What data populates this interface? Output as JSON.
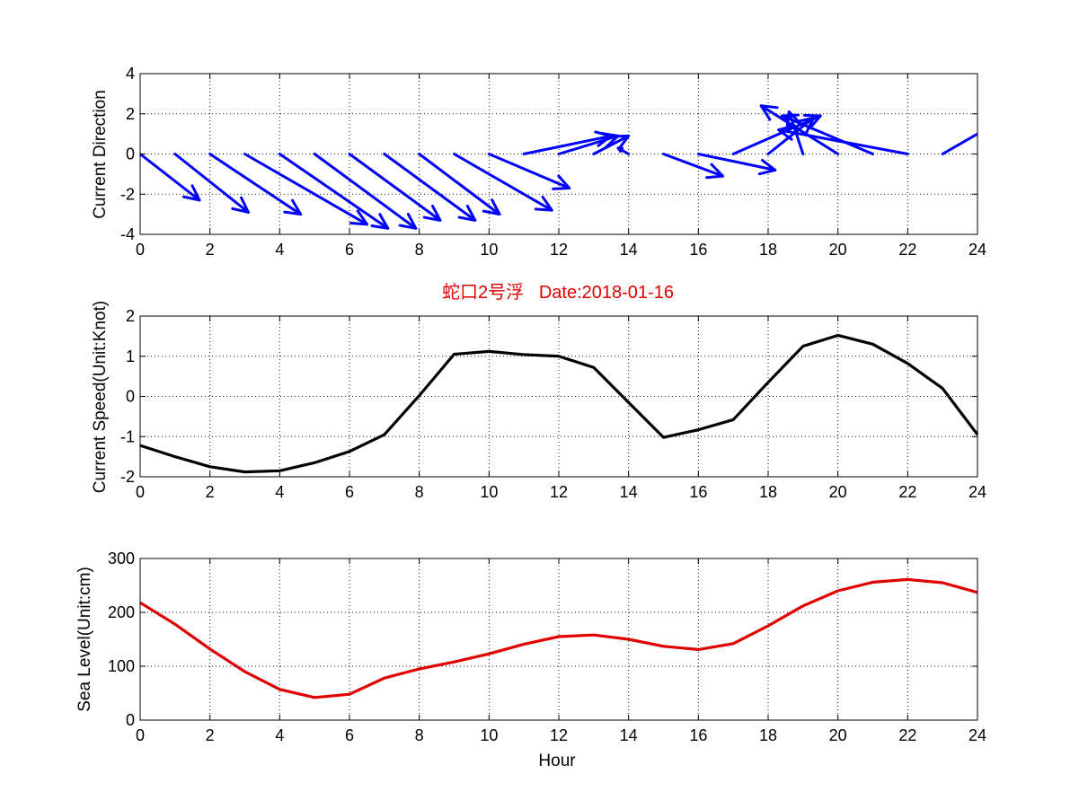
{
  "title": "蛇口2号浮   Date:2018-01-16",
  "colors": {
    "direction": "#0000ff",
    "speed": "#000000",
    "sea_level": "#e00000",
    "title": "#e00000"
  },
  "chart_data": [
    {
      "type": "quiver",
      "ylabel": "Current Direction",
      "xlabel": "",
      "xlim": [
        0,
        24
      ],
      "ylim": [
        -4,
        4
      ],
      "xticks": [
        0,
        2,
        4,
        6,
        8,
        10,
        12,
        14,
        16,
        18,
        20,
        22,
        24
      ],
      "yticks": [
        -4,
        -2,
        0,
        2,
        4
      ],
      "grid": true,
      "x": [
        0,
        1,
        2,
        3,
        4,
        5,
        6,
        7,
        8,
        9,
        10,
        11,
        12,
        13,
        14,
        15,
        16,
        17,
        18,
        19,
        20,
        21,
        22,
        23
      ],
      "u": [
        1.7,
        2.1,
        2.6,
        3.5,
        3.1,
        2.9,
        2.6,
        2.6,
        2.3,
        2.8,
        2.3,
        2.5,
        1.7,
        1.0,
        -0.3,
        1.7,
        2.2,
        2.5,
        1.3,
        -0.4,
        -2.2,
        -2.6,
        -3.7,
        1.5
      ],
      "v": [
        -2.3,
        -2.9,
        -3.0,
        -3.5,
        -3.7,
        -3.7,
        -3.3,
        -3.3,
        -3.0,
        -2.8,
        -1.7,
        0.9,
        0.9,
        0.9,
        0.3,
        -1.1,
        -0.8,
        1.9,
        1.8,
        2.1,
        2.4,
        1.9,
        1.2,
        1.5
      ]
    },
    {
      "type": "line",
      "ylabel": "Current Speed(Unit:Knot)",
      "xlabel": "",
      "xlim": [
        0,
        24
      ],
      "ylim": [
        -2,
        2
      ],
      "xticks": [
        0,
        2,
        4,
        6,
        8,
        10,
        12,
        14,
        16,
        18,
        20,
        22,
        24
      ],
      "yticks": [
        -2,
        -1,
        0,
        1,
        2
      ],
      "grid": true,
      "x": [
        0,
        1,
        2,
        3,
        4,
        5,
        6,
        7,
        8,
        9,
        10,
        11,
        12,
        13,
        14,
        15,
        16,
        17,
        18,
        19,
        20,
        21,
        22,
        23,
        24
      ],
      "y": [
        -1.22,
        -1.5,
        -1.75,
        -1.88,
        -1.85,
        -1.65,
        -1.37,
        -0.95,
        0.02,
        1.05,
        1.12,
        1.04,
        1.0,
        0.72,
        -0.15,
        -1.02,
        -0.83,
        -0.58,
        0.35,
        1.25,
        1.52,
        1.3,
        0.82,
        0.2,
        -0.95
      ]
    },
    {
      "type": "line",
      "ylabel": "Sea Level(Unit:cm)",
      "xlabel": "Hour",
      "xlim": [
        0,
        24
      ],
      "ylim": [
        0,
        300
      ],
      "xticks": [
        0,
        2,
        4,
        6,
        8,
        10,
        12,
        14,
        16,
        18,
        20,
        22,
        24
      ],
      "yticks": [
        0,
        100,
        200,
        300
      ],
      "grid": true,
      "x": [
        0,
        1,
        2,
        3,
        4,
        5,
        6,
        7,
        8,
        9,
        10,
        11,
        12,
        13,
        14,
        15,
        16,
        17,
        18,
        19,
        20,
        21,
        22,
        23,
        24
      ],
      "y": [
        218,
        178,
        132,
        90,
        57,
        42,
        48,
        78,
        95,
        108,
        123,
        141,
        155,
        158,
        150,
        137,
        131,
        142,
        175,
        212,
        240,
        256,
        261,
        255,
        237
      ]
    }
  ]
}
